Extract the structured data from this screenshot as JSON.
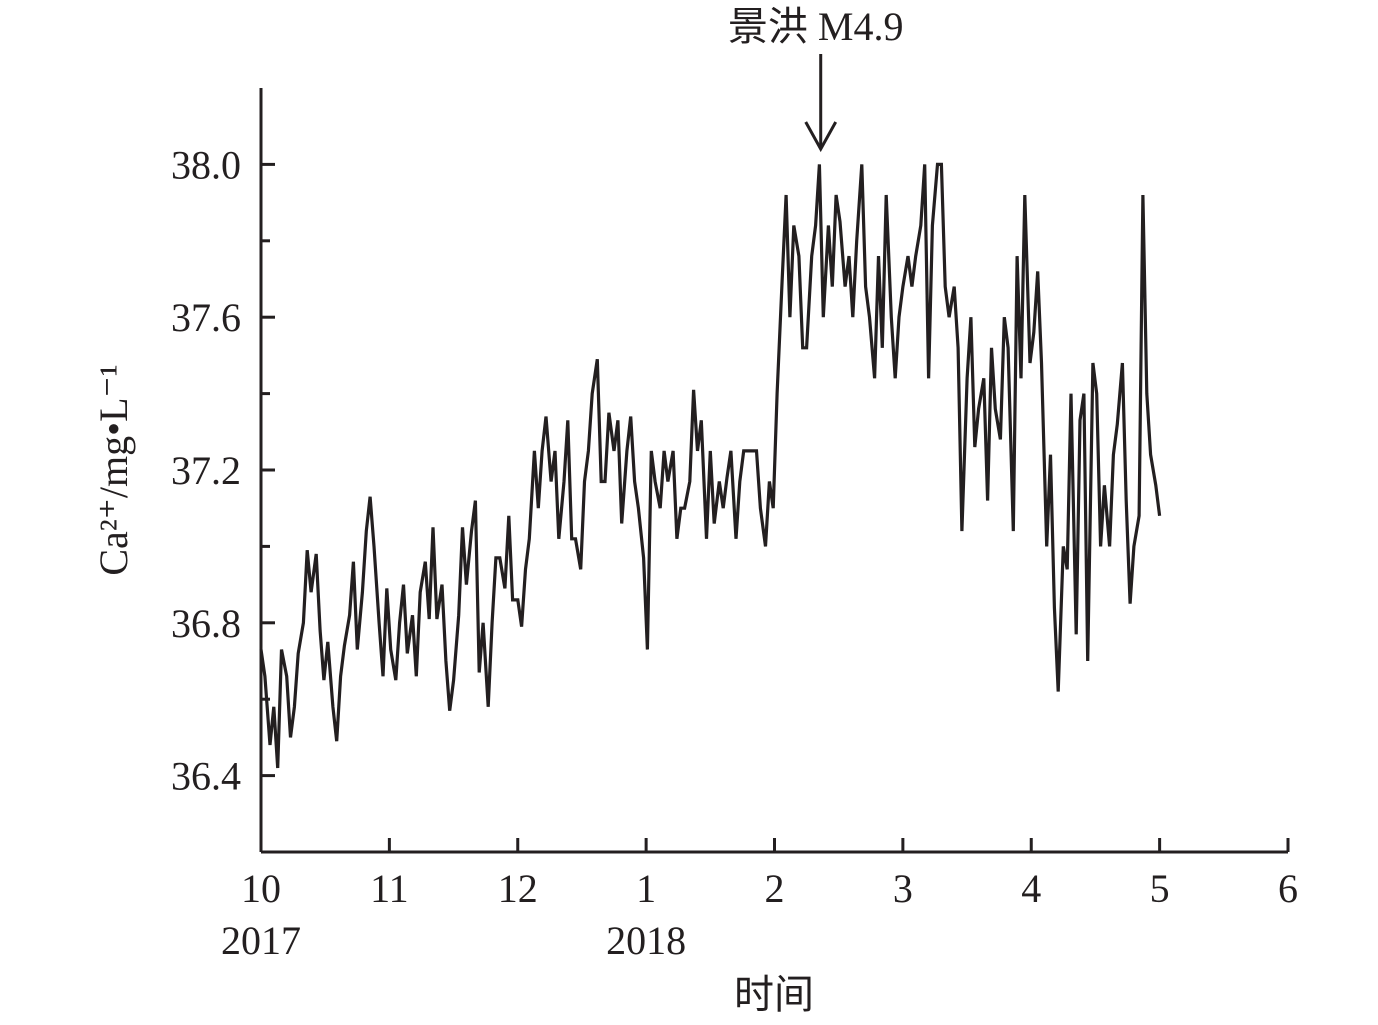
{
  "chart_data": {
    "type": "line",
    "ylabel": "Ca²⁺/mg•L⁻¹",
    "xlabel": "时间",
    "annotation": {
      "text": "景洪 M4.9",
      "x": 4.36
    },
    "xlim": [
      0,
      8
    ],
    "xticks": [
      {
        "value": 0,
        "label": "10"
      },
      {
        "value": 1,
        "label": "11"
      },
      {
        "value": 2,
        "label": "12"
      },
      {
        "value": 3,
        "label": "1"
      },
      {
        "value": 4,
        "label": "2"
      },
      {
        "value": 5,
        "label": "3"
      },
      {
        "value": 6,
        "label": "4"
      },
      {
        "value": 7,
        "label": "5"
      },
      {
        "value": 8,
        "label": "6"
      }
    ],
    "year_labels": [
      {
        "value": 0,
        "label": "2017"
      },
      {
        "value": 3,
        "label": "2018"
      }
    ],
    "ylim": [
      36.2,
      38.2
    ],
    "yticks": [
      36.4,
      36.8,
      37.2,
      37.6,
      {
        "value": 38,
        "label": "38.0"
      }
    ],
    "yminor_ticks": [
      36.6,
      37.0,
      37.4,
      37.8
    ],
    "x": [
      0.0,
      0.03,
      0.07,
      0.1,
      0.13,
      0.16,
      0.2,
      0.23,
      0.26,
      0.29,
      0.33,
      0.36,
      0.39,
      0.43,
      0.46,
      0.49,
      0.52,
      0.56,
      0.59,
      0.62,
      0.65,
      0.69,
      0.72,
      0.75,
      0.79,
      0.82,
      0.85,
      0.88,
      0.92,
      0.95,
      0.98,
      1.01,
      1.05,
      1.08,
      1.11,
      1.14,
      1.18,
      1.21,
      1.24,
      1.28,
      1.31,
      1.34,
      1.37,
      1.41,
      1.44,
      1.47,
      1.5,
      1.54,
      1.57,
      1.6,
      1.64,
      1.67,
      1.7,
      1.73,
      1.77,
      1.8,
      1.83,
      1.86,
      1.9,
      1.93,
      1.96,
      2.0,
      2.03,
      2.06,
      2.09,
      2.13,
      2.16,
      2.19,
      2.22,
      2.26,
      2.29,
      2.32,
      2.36,
      2.39,
      2.42,
      2.45,
      2.49,
      2.52,
      2.55,
      2.58,
      2.62,
      2.65,
      2.68,
      2.71,
      2.75,
      2.78,
      2.81,
      2.85,
      2.88,
      2.91,
      2.94,
      2.98,
      3.01,
      3.04,
      3.07,
      3.11,
      3.14,
      3.17,
      3.21,
      3.24,
      3.27,
      3.3,
      3.34,
      3.37,
      3.4,
      3.43,
      3.47,
      3.5,
      3.53,
      3.57,
      3.6,
      3.63,
      3.66,
      3.7,
      3.73,
      3.76,
      3.79,
      3.83,
      3.86,
      3.89,
      3.93,
      3.96,
      3.99,
      4.02,
      4.06,
      4.09,
      4.12,
      4.15,
      4.19,
      4.22,
      4.25,
      4.29,
      4.32,
      4.35,
      4.38,
      4.42,
      4.45,
      4.48,
      4.51,
      4.55,
      4.58,
      4.61,
      4.64,
      4.68,
      4.71,
      4.74,
      4.78,
      4.81,
      4.84,
      4.87,
      4.91,
      4.94,
      4.97,
      5.0,
      5.04,
      5.07,
      5.1,
      5.14,
      5.17,
      5.2,
      5.23,
      5.27,
      5.3,
      5.33,
      5.36,
      5.4,
      5.43,
      5.46,
      5.5,
      5.53,
      5.56,
      5.59,
      5.63,
      5.66,
      5.69,
      5.72,
      5.76,
      5.79,
      5.82,
      5.86,
      5.89,
      5.92,
      5.95,
      5.99,
      6.02,
      6.05,
      6.08,
      6.12,
      6.15,
      6.18,
      6.21,
      6.25,
      6.28,
      6.31,
      6.35,
      6.38,
      6.41,
      6.44,
      6.48,
      6.51,
      6.54,
      6.57,
      6.61,
      6.64,
      6.67,
      6.71,
      6.74,
      6.77,
      6.8,
      6.84,
      6.87,
      6.9,
      6.93,
      6.97,
      7.0
    ],
    "series": [
      {
        "color": "#231f20",
        "values": [
          36.73,
          36.66,
          36.48,
          36.58,
          36.42,
          36.73,
          36.66,
          36.5,
          36.58,
          36.72,
          36.8,
          36.99,
          36.88,
          36.98,
          36.78,
          36.65,
          36.75,
          36.58,
          36.49,
          36.66,
          36.74,
          36.82,
          36.96,
          36.73,
          36.88,
          37.04,
          37.13,
          37.0,
          36.8,
          36.66,
          36.89,
          36.73,
          36.65,
          36.8,
          36.9,
          36.72,
          36.82,
          36.66,
          36.88,
          36.96,
          36.81,
          37.05,
          36.81,
          36.9,
          36.7,
          36.57,
          36.65,
          36.82,
          37.05,
          36.9,
          37.04,
          37.12,
          36.67,
          36.8,
          36.58,
          36.8,
          36.97,
          36.97,
          36.89,
          37.08,
          36.86,
          36.86,
          36.79,
          36.94,
          37.02,
          37.25,
          37.1,
          37.25,
          37.34,
          37.17,
          37.25,
          37.02,
          37.17,
          37.33,
          37.02,
          37.02,
          36.94,
          37.17,
          37.25,
          37.4,
          37.49,
          37.17,
          37.17,
          37.35,
          37.25,
          37.33,
          37.06,
          37.25,
          37.34,
          37.17,
          37.1,
          36.97,
          36.73,
          37.25,
          37.17,
          37.1,
          37.25,
          37.17,
          37.25,
          37.02,
          37.1,
          37.1,
          37.17,
          37.41,
          37.25,
          37.33,
          37.02,
          37.25,
          37.06,
          37.17,
          37.1,
          37.18,
          37.25,
          37.02,
          37.17,
          37.25,
          37.25,
          37.25,
          37.25,
          37.1,
          37.0,
          37.17,
          37.1,
          37.4,
          37.7,
          37.92,
          37.6,
          37.84,
          37.76,
          37.52,
          37.52,
          37.76,
          37.84,
          38.0,
          37.6,
          37.84,
          37.68,
          37.92,
          37.85,
          37.68,
          37.76,
          37.6,
          37.8,
          38.0,
          37.68,
          37.6,
          37.44,
          37.76,
          37.52,
          37.92,
          37.6,
          37.44,
          37.6,
          37.68,
          37.76,
          37.68,
          37.76,
          37.84,
          38.0,
          37.44,
          37.84,
          38.0,
          38.0,
          37.68,
          37.6,
          37.68,
          37.52,
          37.04,
          37.44,
          37.6,
          37.26,
          37.36,
          37.44,
          37.12,
          37.52,
          37.36,
          37.28,
          37.6,
          37.52,
          37.04,
          37.76,
          37.44,
          37.92,
          37.48,
          37.56,
          37.72,
          37.48,
          37.0,
          37.24,
          36.84,
          36.62,
          37.0,
          36.94,
          37.4,
          36.77,
          37.33,
          37.4,
          36.7,
          37.48,
          37.4,
          37.0,
          37.16,
          37.0,
          37.24,
          37.32,
          37.48,
          37.12,
          36.85,
          37.0,
          37.08,
          37.92,
          37.4,
          37.24,
          37.16,
          37.08
        ]
      }
    ]
  }
}
